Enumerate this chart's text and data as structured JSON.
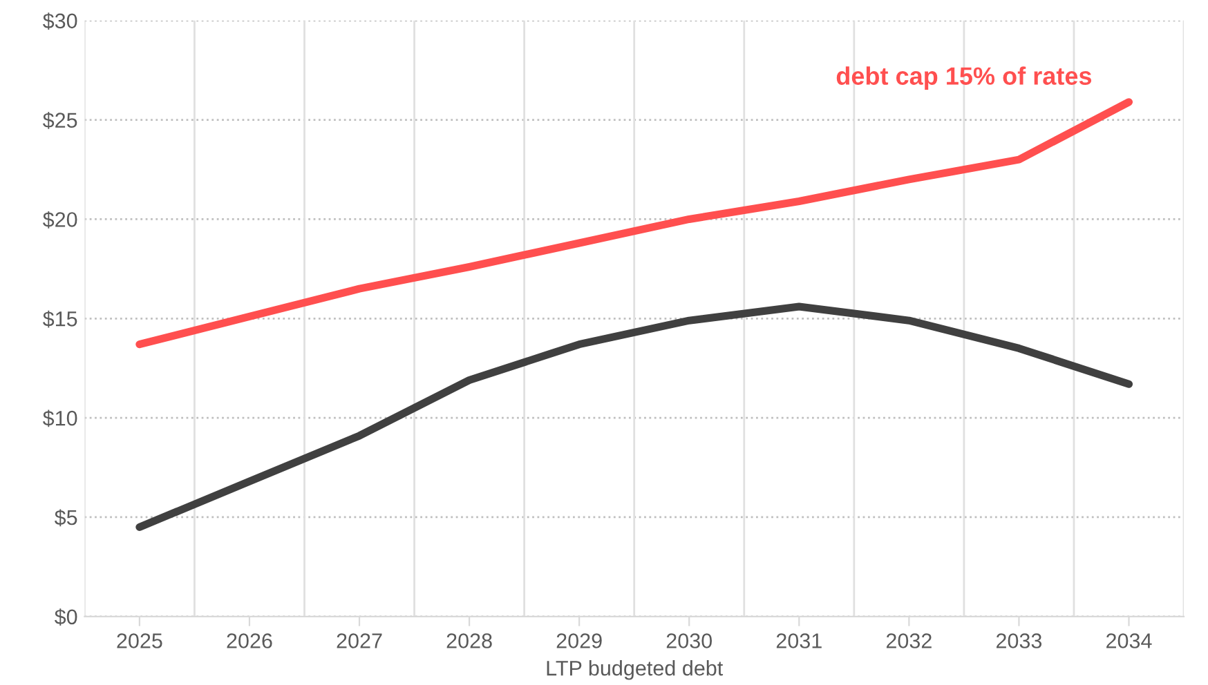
{
  "chart_data": {
    "type": "line",
    "xlabel": "LTP budgeted debt",
    "categories": [
      "2025",
      "2026",
      "2027",
      "2028",
      "2029",
      "2030",
      "2031",
      "2032",
      "2033",
      "2034"
    ],
    "series": [
      {
        "name": "debt cap 15% of rates",
        "color": "#ff4f4f",
        "values": [
          13.7,
          15.1,
          16.5,
          17.6,
          18.8,
          20.0,
          20.9,
          22.0,
          23.0,
          25.9
        ]
      },
      {
        "color": "#404040",
        "values": [
          4.5,
          6.8,
          9.1,
          11.9,
          13.7,
          14.9,
          15.6,
          14.9,
          13.5,
          11.7
        ]
      }
    ],
    "ylim": [
      0,
      30
    ],
    "yticks": [
      {
        "value": 0,
        "label": "$0"
      },
      {
        "value": 5,
        "label": "$5"
      },
      {
        "value": 10,
        "label": "$10"
      },
      {
        "value": 15,
        "label": "$15"
      },
      {
        "value": 20,
        "label": "$20"
      },
      {
        "value": 25,
        "label": "$25"
      },
      {
        "value": 30,
        "label": "$30"
      }
    ],
    "grid": true,
    "marker": "none",
    "line_style": "solid"
  }
}
